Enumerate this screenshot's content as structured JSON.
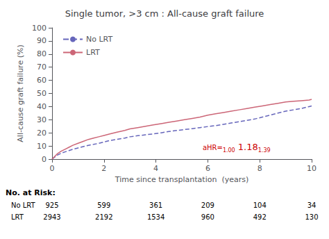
{
  "chart_data": {
    "type": "line",
    "title": "Single tumor, >3 cm : All-cause graft failure",
    "xlabel": "Time since transplantation  (years)",
    "ylabel": "All-cause graft failure (%)",
    "xlim": [
      0,
      10
    ],
    "ylim": [
      0,
      100
    ],
    "xticks": [
      0,
      2,
      4,
      6,
      8,
      10
    ],
    "yticks": [
      0,
      10,
      20,
      30,
      40,
      50,
      60,
      70,
      80,
      90,
      100
    ],
    "grid": false,
    "legend": "upper left",
    "x": [
      0.0,
      0.1,
      0.2,
      0.35,
      0.5,
      0.65,
      0.8,
      1.0,
      1.2,
      1.4,
      1.6,
      1.8,
      2.0,
      2.2,
      2.5,
      2.8,
      3.0,
      3.3,
      3.6,
      3.9,
      4.2,
      4.5,
      4.8,
      5.1,
      5.4,
      5.7,
      6.0,
      6.3,
      6.6,
      6.9,
      7.2,
      7.5,
      7.8,
      8.1,
      8.4,
      8.7,
      9.0,
      9.3,
      9.6,
      9.9,
      10.0
    ],
    "series": [
      {
        "name": "No LRT",
        "color": "#6666bb",
        "line_style": "dashed",
        "values": [
          0,
          1.5,
          3,
          4.5,
          5.5,
          6.5,
          7.5,
          8.5,
          9.5,
          10.5,
          11.2,
          12.0,
          13.0,
          14.0,
          15.0,
          16.0,
          17.0,
          17.8,
          18.5,
          19.2,
          20.0,
          21.0,
          21.8,
          22.5,
          23.2,
          24.0,
          24.8,
          25.5,
          26.5,
          27.5,
          28.5,
          29.5,
          30.5,
          32.0,
          33.5,
          35.0,
          36.5,
          37.5,
          38.5,
          40.0,
          40.5
        ]
      },
      {
        "name": "LRT",
        "color": "#cc6677",
        "line_style": "solid",
        "values": [
          0,
          2.0,
          4.0,
          6.0,
          7.5,
          9.0,
          10.5,
          12.0,
          13.5,
          15.0,
          16.0,
          17.0,
          18.0,
          19.0,
          20.5,
          21.8,
          23.0,
          24.0,
          25.0,
          26.0,
          27.0,
          28.0,
          29.0,
          30.0,
          31.0,
          32.0,
          33.5,
          34.5,
          35.5,
          36.5,
          37.5,
          38.5,
          39.5,
          40.5,
          41.5,
          42.5,
          43.5,
          44.0,
          44.5,
          45.0,
          45.5
        ]
      }
    ],
    "annotation": {
      "color": "#cc0000",
      "parts": [
        "aHR=",
        "1.00",
        " 1.18",
        "1.39"
      ]
    },
    "risk_table": {
      "header": "No. at Risk:",
      "rows": [
        {
          "label": "No LRT",
          "values": [
            925,
            599,
            361,
            209,
            104,
            34
          ]
        },
        {
          "label": "LRT",
          "values": [
            2943,
            2192,
            1534,
            960,
            492,
            130
          ]
        }
      ]
    }
  }
}
